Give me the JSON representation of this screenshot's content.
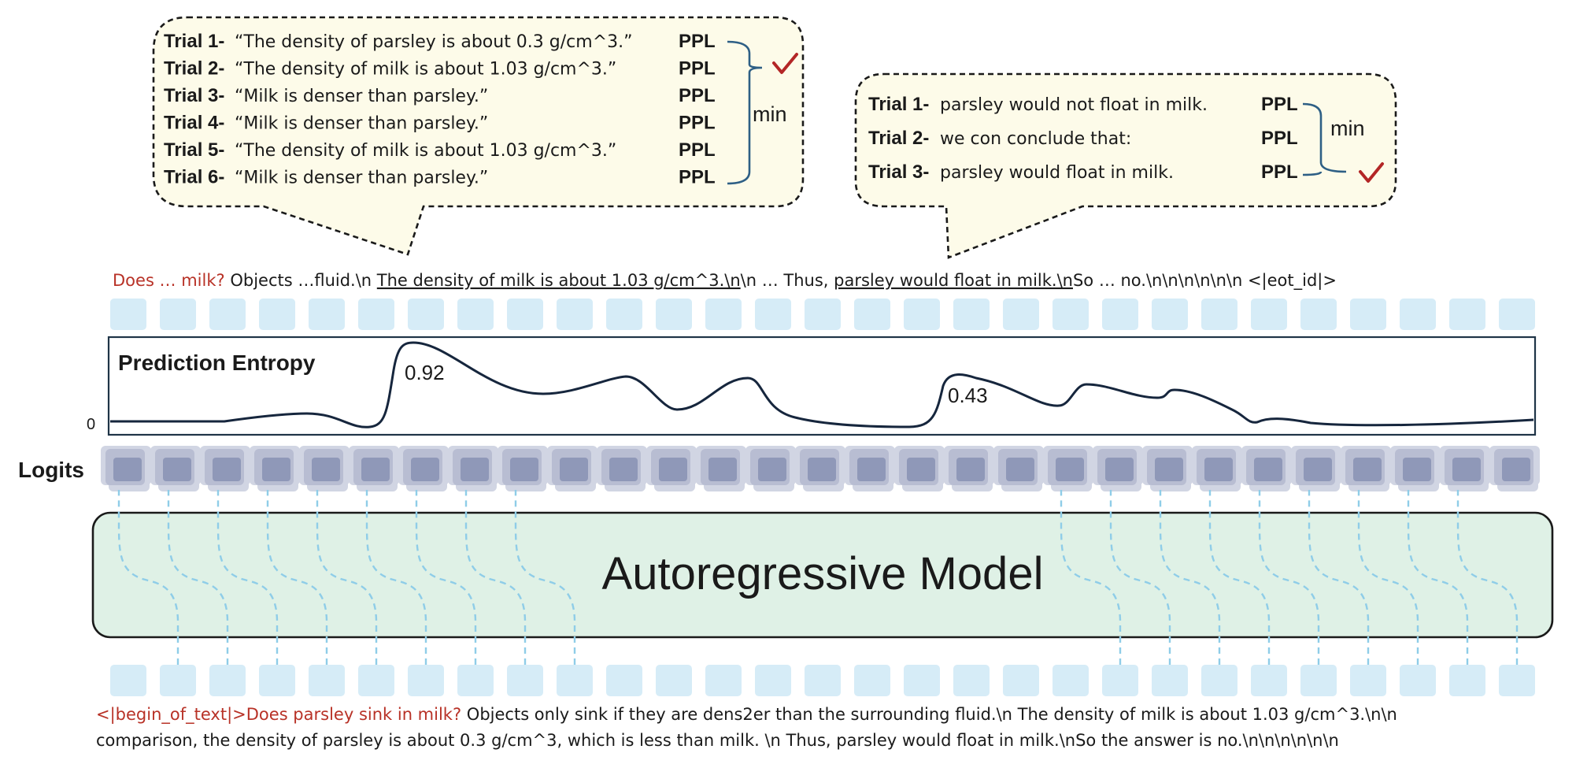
{
  "bubble_left": {
    "trials": [
      {
        "label": "Trial 1-",
        "text": "“The density of parsley is about 0.3 g/cm^3.”",
        "ppl": "PPL"
      },
      {
        "label": "Trial 2-",
        "text": "“The density of milk is about 1.03 g/cm^3.”",
        "ppl": "PPL"
      },
      {
        "label": "Trial 3-",
        "text": "“Milk is denser than parsley.”",
        "ppl": "PPL"
      },
      {
        "label": "Trial 4-",
        "text": "“Milk is denser than parsley.”",
        "ppl": "PPL"
      },
      {
        "label": "Trial 5-",
        "text": "“The density of milk is about 1.03 g/cm^3.”",
        "ppl": "PPL"
      },
      {
        "label": "Trial 6-",
        "text": "“Milk is denser than parsley.”",
        "ppl": "PPL"
      }
    ],
    "min_label": "min",
    "selected_trial": 2
  },
  "bubble_right": {
    "trials": [
      {
        "label": "Trial 1-",
        "text": "parsley would not float in milk.",
        "ppl": "PPL"
      },
      {
        "label": "Trial 2-",
        "text": "we con conclude that:",
        "ppl": "PPL"
      },
      {
        "label": "Trial 3-",
        "text": "parsley would float in milk.",
        "ppl": "PPL"
      }
    ],
    "min_label": "min",
    "selected_trial": 3
  },
  "output_seq": {
    "question": "Does … milk?",
    "part1": " Objects …fluid.\\n ",
    "underline1": "The density of milk is about 1.03 g/cm^3.\\n",
    "part2": "\\n … Thus, ",
    "underline2": "parsley would float in milk.\\n",
    "part3": "So … no.\\n\\n\\n\\n\\n\\n <|eot_id|>"
  },
  "entropy": {
    "title": "Prediction Entropy",
    "zero_label": "0",
    "peak1_label": "0.92",
    "peak2_label": "0.43"
  },
  "logits_label": "Logits",
  "model_label": "Autoregressive Model",
  "input_seq": {
    "prefix": "<|begin_of_text|>Does parsley sink in milk?",
    "line1_rest": " Objects only sink if they are dens2er than the surrounding fluid.\\n The density of milk is about 1.03 g/cm^3.\\n\\n",
    "line2": "comparison, the density of parsley is about 0.3 g/cm^3, which is less than milk. \\n Thus, parsley would float in milk.\\nSo the answer is no.\\n\\n\\n\\n\\n\\n"
  },
  "colors": {
    "bubble_fill": "#fdfbe9",
    "token_fill": "#d6ecf7",
    "logit_dark": "#8f98b8",
    "logit_light": "#d1d5e3",
    "model_fill": "#dff1e6",
    "curve": "#16263d",
    "bracket": "#2e5f85",
    "check": "#b32626",
    "question_red": "#b83227",
    "dash_link": "#8fcde8"
  }
}
